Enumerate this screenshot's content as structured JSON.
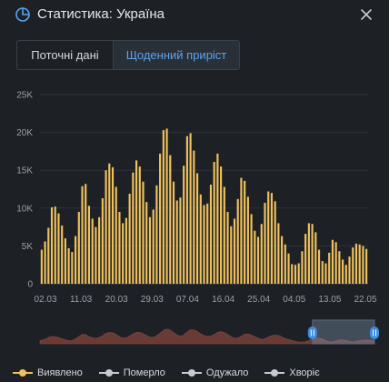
{
  "header": {
    "title": "Статистика: Україна",
    "icon": "pie-chart-icon",
    "close_icon": "close-icon"
  },
  "tabs": [
    {
      "label": "Поточні дані",
      "active": false
    },
    {
      "label": "Щоденний приріст",
      "active": true
    }
  ],
  "colors": {
    "background": "#1d2126",
    "bar": "#f0c15a",
    "accent": "#5aa4f0",
    "navigator_handle": "#3c8de0",
    "legend_series_inactive": "#c7cbd0"
  },
  "chart_data": {
    "type": "bar",
    "ylim": [
      0,
      25000
    ],
    "y_ticks": [
      "0",
      "5K",
      "10K",
      "15K",
      "20K",
      "25K"
    ],
    "x_tick_labels": [
      "02.03",
      "11.03",
      "20.03",
      "29.03",
      "07.04",
      "16.04",
      "25.04",
      "04.05",
      "13.05",
      "22.05"
    ],
    "grid": true,
    "legend_position": "bottom",
    "series": [
      {
        "name": "Виявлено",
        "color": "#f0c15a",
        "values": [
          4500,
          5600,
          7400,
          10100,
          10200,
          9300,
          7700,
          6000,
          4700,
          4200,
          6300,
          9500,
          12900,
          13200,
          10300,
          8600,
          7500,
          8800,
          11300,
          15000,
          15900,
          15400,
          12800,
          9500,
          8000,
          8700,
          11900,
          14700,
          16300,
          15500,
          13500,
          10800,
          8800,
          9800,
          13000,
          17200,
          20300,
          20500,
          17000,
          13500,
          11000,
          11400,
          15600,
          19500,
          19900,
          17600,
          14600,
          11800,
          10400,
          10600,
          13100,
          16100,
          17200,
          15500,
          12800,
          9500,
          7600,
          8600,
          11200,
          14000,
          13600,
          11500,
          9200,
          7000,
          6200,
          7900,
          10700,
          12200,
          12000,
          10900,
          8000,
          6300,
          5200,
          4000,
          2600,
          2500,
          2700,
          4300,
          6600,
          8000,
          7900,
          6800,
          4500,
          3000,
          2700,
          4100,
          5800,
          5500,
          4300,
          3200,
          2500,
          3600,
          4800,
          5300,
          5200,
          5000,
          4600
        ]
      },
      {
        "name": "Померло",
        "values": []
      },
      {
        "name": "Одужало",
        "values": []
      },
      {
        "name": "Хворіє",
        "values": []
      }
    ]
  },
  "navigator": {
    "selected_range": [
      0.82,
      1.0
    ]
  },
  "legend": [
    {
      "label": "Виявлено",
      "active": true
    },
    {
      "label": "Померло",
      "active": false
    },
    {
      "label": "Одужало",
      "active": false
    },
    {
      "label": "Хворіє",
      "active": false
    }
  ]
}
